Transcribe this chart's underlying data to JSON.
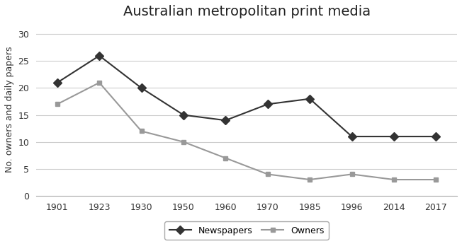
{
  "title": "Australian metropolitan print media",
  "ylabel": "No. owners and daily papers",
  "years": [
    1901,
    1923,
    1930,
    1950,
    1960,
    1970,
    1985,
    1996,
    2014,
    2017
  ],
  "x_positions": [
    0,
    1,
    2,
    3,
    4,
    5,
    6,
    7,
    8,
    9
  ],
  "newspapers": [
    21,
    26,
    20,
    15,
    14,
    17,
    18,
    11,
    11,
    11
  ],
  "owners": [
    17,
    21,
    12,
    10,
    7,
    4,
    3,
    4,
    3,
    3
  ],
  "newspaper_color": "#333333",
  "owner_color": "#999999",
  "ylim": [
    0,
    32
  ],
  "yticks": [
    0,
    5,
    10,
    15,
    20,
    25,
    30
  ],
  "background_color": "#ffffff",
  "legend_labels": [
    "Newspapers",
    "Owners"
  ],
  "title_fontsize": 14,
  "axis_fontsize": 9,
  "legend_fontsize": 9,
  "tick_fontsize": 9
}
